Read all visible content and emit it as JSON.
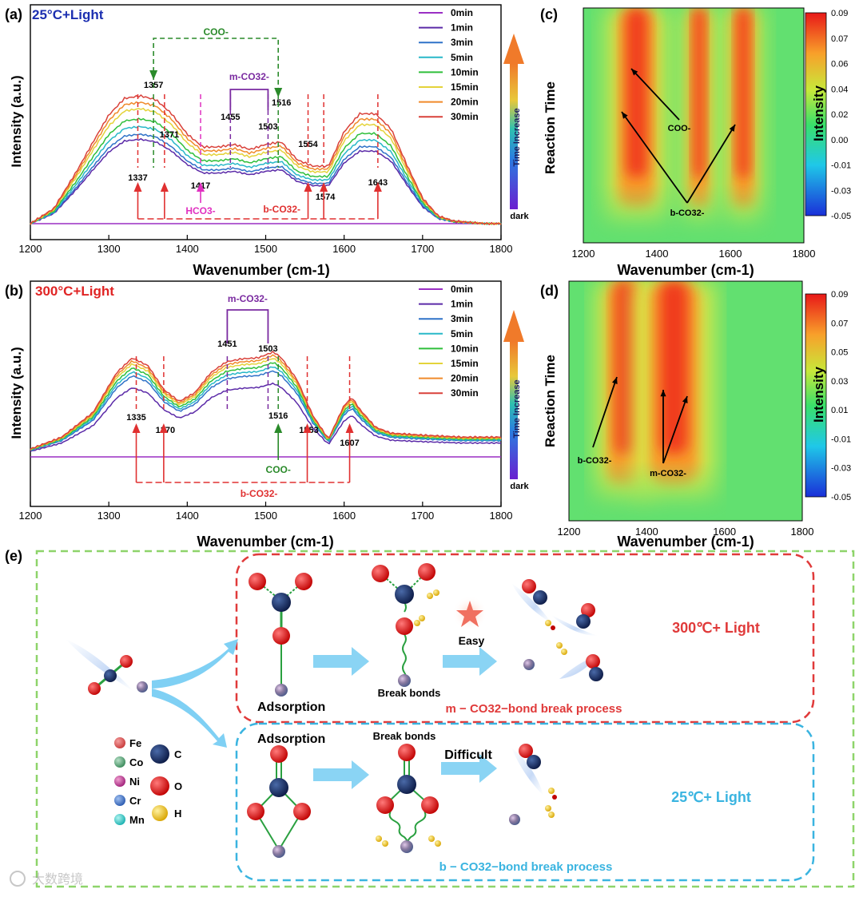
{
  "panel_a": {
    "letter": "(a)",
    "condition": "25°C+Light",
    "condition_color": "#1c2fb0",
    "xlabel": "Wavenumber (cm-1)",
    "ylabel": "Intensity (a.u.)",
    "coo": "COO-",
    "mco3": "m-CO32-",
    "bco3": "b-CO32-",
    "hco3": "HCO3-",
    "time_increase": "Time Increase",
    "dark": "dark"
  },
  "panel_b": {
    "letter": "(b)",
    "condition": "300°C+Light",
    "condition_color": "#e02424",
    "xlabel": "Wavenumber (cm-1)",
    "ylabel": "Intensity (a.u.)",
    "coo": "COO-",
    "mco3": "m-CO32-",
    "bco3": "b-CO32-",
    "time_increase": "Time Increase",
    "dark": "dark"
  },
  "panel_c": {
    "letter": "(c)",
    "xlabel": "Wavenumber (cm-1)",
    "ylabel": "Reaction Time",
    "cbar_label": "Intensity",
    "coo": "COO-",
    "bco3": "b-CO32-",
    "cbar_ticks": [
      "0.09",
      "0.07",
      "0.06",
      "0.04",
      "0.02",
      "0.00",
      "-0.01",
      "-0.03",
      "-0.05"
    ]
  },
  "panel_d": {
    "letter": "(d)",
    "xlabel": "Wavenumber (cm-1)",
    "ylabel": "Reaction Time",
    "cbar_label": "Intensity",
    "bco3": "b-CO32-",
    "mco3": "m-CO32-",
    "cbar_ticks": [
      "0.09",
      "0.07",
      "0.05",
      "0.03",
      "0.01",
      "-0.01",
      "-0.03",
      "-0.05"
    ]
  },
  "panel_e": {
    "letter": "(e)",
    "adsorption_top": "Adsorption",
    "adsorption_bottom": "Adsorption",
    "break_top": "Break bonds",
    "break_bottom": "Break bonds",
    "easy": "Easy",
    "difficult": "Difficult",
    "label_300": "300℃+ Light",
    "label_25": "25℃+ Light",
    "m_process": "m − CO32−bond break process",
    "b_process": "b − CO32−bond break process",
    "legend": {
      "fe": "Fe",
      "co": "Co",
      "ni": "Ni",
      "cr": "Cr",
      "mn": "Mn",
      "c": "C",
      "o": "O",
      "h": "H"
    }
  },
  "watermark": "大数跨境",
  "chart_data": [
    {
      "id": "a",
      "type": "line",
      "title": "25°C+Light",
      "xlabel": "Wavenumber (cm-1)",
      "ylabel": "Intensity (a.u.)",
      "xlim": [
        1200,
        1800
      ],
      "xticks": [
        1200,
        1300,
        1400,
        1500,
        1600,
        1700,
        1800
      ],
      "legend": [
        "0min",
        "1min",
        "3min",
        "5min",
        "10min",
        "15min",
        "20min",
        "30min"
      ],
      "colors": [
        "#9a2fc4",
        "#5b2aa8",
        "#2f72c8",
        "#28b8c8",
        "#2fbf3a",
        "#e4d33a",
        "#f08a2a",
        "#d9413a"
      ],
      "scales": [
        0,
        0.66,
        0.7,
        0.76,
        0.82,
        0.9,
        0.95,
        1.0
      ],
      "peaks": [
        1337,
        1357,
        1371,
        1417,
        1455,
        1503,
        1516,
        1554,
        1574,
        1643
      ],
      "annotations": {
        "COO-": [
          1357,
          1516
        ],
        "m-CO32-": [
          1455,
          1503
        ],
        "HCO3-": [
          1417
        ],
        "b-CO32-": [
          1337,
          1371,
          1554,
          1574,
          1643
        ]
      },
      "profile_x": [
        1200,
        1230,
        1260,
        1280,
        1300,
        1320,
        1340,
        1360,
        1380,
        1400,
        1420,
        1440,
        1460,
        1480,
        1500,
        1520,
        1540,
        1560,
        1580,
        1600,
        1620,
        1640,
        1660,
        1680,
        1700,
        1720,
        1740,
        1760,
        1780,
        1800
      ],
      "profile_y": [
        0,
        0.12,
        0.42,
        0.64,
        0.85,
        0.98,
        1.0,
        0.97,
        0.86,
        0.7,
        0.6,
        0.6,
        0.62,
        0.58,
        0.62,
        0.64,
        0.5,
        0.45,
        0.45,
        0.72,
        0.86,
        0.86,
        0.74,
        0.46,
        0.2,
        0.06,
        0.02,
        0.01,
        0,
        0
      ]
    },
    {
      "id": "b",
      "type": "line",
      "title": "300°C+Light",
      "xlabel": "Wavenumber (cm-1)",
      "ylabel": "Intensity (a.u.)",
      "xlim": [
        1200,
        1800
      ],
      "xticks": [
        1200,
        1300,
        1400,
        1500,
        1600,
        1700,
        1800
      ],
      "legend": [
        "0min",
        "1min",
        "3min",
        "5min",
        "10min",
        "15min",
        "20min",
        "30min"
      ],
      "colors": [
        "#9a2fc4",
        "#5b2aa8",
        "#2f72c8",
        "#28b8c8",
        "#2fbf3a",
        "#e4d33a",
        "#f08a2a",
        "#d9413a"
      ],
      "scales": [
        0,
        0.7,
        0.82,
        0.86,
        0.9,
        0.94,
        0.97,
        1.0
      ],
      "peaks": [
        1335,
        1370,
        1451,
        1503,
        1516,
        1553,
        1607
      ],
      "annotations": {
        "COO-": [
          1516
        ],
        "m-CO32-": [
          1451,
          1503
        ],
        "b-CO32-": [
          1335,
          1370,
          1553,
          1607
        ]
      },
      "profile_x": [
        1200,
        1240,
        1280,
        1310,
        1330,
        1350,
        1370,
        1390,
        1410,
        1430,
        1450,
        1470,
        1490,
        1510,
        1520,
        1540,
        1560,
        1580,
        1600,
        1610,
        1620,
        1640,
        1660,
        1700,
        1750,
        1800
      ],
      "profile_y": [
        0.08,
        0.2,
        0.45,
        0.85,
        1.0,
        0.92,
        0.68,
        0.56,
        0.65,
        0.85,
        0.96,
        0.99,
        1.0,
        1.06,
        1.0,
        0.78,
        0.42,
        0.18,
        0.52,
        0.6,
        0.48,
        0.3,
        0.24,
        0.22,
        0.2,
        0.2
      ]
    },
    {
      "id": "c",
      "type": "heatmap",
      "xlabel": "Wavenumber (cm-1)",
      "ylabel": "Reaction Time",
      "colorbar_label": "Intensity",
      "xlim": [
        1200,
        1800
      ],
      "xticks": [
        1200,
        1400,
        1600,
        1800
      ],
      "color_range": [
        -0.05,
        0.09
      ],
      "bands": [
        {
          "center": 1345,
          "half_width": 55,
          "label": "b-CO32-/COO-"
        },
        {
          "center": 1515,
          "half_width": 28,
          "label": "COO-"
        },
        {
          "center": 1635,
          "half_width": 32,
          "label": "b-CO32-"
        }
      ],
      "annotations": [
        "COO-",
        "b-CO32-"
      ]
    },
    {
      "id": "d",
      "type": "heatmap",
      "xlabel": "Wavenumber (cm-1)",
      "ylabel": "Reaction Time",
      "colorbar_label": "Intensity",
      "xlim": [
        1200,
        1800
      ],
      "xticks": [
        1200,
        1400,
        1600,
        1800
      ],
      "color_range": [
        -0.05,
        0.09
      ],
      "bands": [
        {
          "center": 1345,
          "half_width": 50,
          "label": "b-CO32-"
        },
        {
          "center": 1470,
          "half_width": 70,
          "label": "m-CO32-"
        }
      ],
      "annotations": [
        "b-CO32-",
        "m-CO32-"
      ]
    }
  ]
}
